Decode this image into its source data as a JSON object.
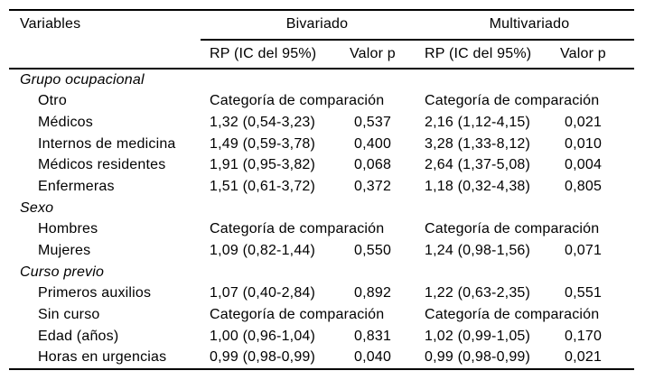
{
  "table": {
    "header": {
      "variables_label": "Variables",
      "bivariate_label": "Bivariado",
      "multivariate_label": "Multivariado",
      "bivariate_rp_label": "RP (IC del 95%)",
      "bivariate_p_label": "Valor p",
      "multivariate_rp_label": "RP (IC del 95%)",
      "multivariate_p_label": "Valor p"
    },
    "comparison_note": "Categoría de comparación",
    "rows": [
      {
        "type": "section",
        "label": "Grupo ocupacional"
      },
      {
        "type": "comparison",
        "label": "Otro",
        "bi": "Categoría de comparación",
        "multi": "Categoría de comparación"
      },
      {
        "type": "data",
        "label": "Médicos",
        "bi_rp": "1,32 (0,54-3,23)",
        "bi_p": "0,537",
        "multi_rp": "2,16 (1,12-4,15)",
        "multi_p": "0,021"
      },
      {
        "type": "data",
        "label": "Internos de medicina",
        "bi_rp": "1,49 (0,59-3,78)",
        "bi_p": "0,400",
        "multi_rp": "3,28 (1,33-8,12)",
        "multi_p": "0,010"
      },
      {
        "type": "data",
        "label": "Médicos residentes",
        "bi_rp": "1,91 (0,95-3,82)",
        "bi_p": "0,068",
        "multi_rp": "2,64 (1,37-5,08)",
        "multi_p": "0,004"
      },
      {
        "type": "data",
        "label": "Enfermeras",
        "bi_rp": "1,51 (0,61-3,72)",
        "bi_p": "0,372",
        "multi_rp": "1,18 (0,32-4,38)",
        "multi_p": "0,805"
      },
      {
        "type": "section",
        "label": "Sexo"
      },
      {
        "type": "comparison",
        "label": "Hombres",
        "bi": "Categoría de comparación",
        "multi": "Categoría de comparación"
      },
      {
        "type": "data",
        "label": "Mujeres",
        "bi_rp": "1,09 (0,82-1,44)",
        "bi_p": "0,550",
        "multi_rp": "1,24 (0,98-1,56)",
        "multi_p": "0,071"
      },
      {
        "type": "section",
        "label": "Curso previo"
      },
      {
        "type": "data",
        "label": "Primeros auxilios",
        "bi_rp": "1,07 (0,40-2,84)",
        "bi_p": "0,892",
        "multi_rp": "1,22 (0,63-2,35)",
        "multi_p": "0,551"
      },
      {
        "type": "comparison",
        "label": "Sin curso",
        "bi": "Categoría de comparación",
        "multi": "Categoría de comparación"
      },
      {
        "type": "data",
        "label": "Edad (años)",
        "bi_rp": "1,00 (0,96-1,04)",
        "bi_p": "0,831",
        "multi_rp": "1,02 (0,99-1,05)",
        "multi_p": "0,170"
      },
      {
        "type": "data",
        "label": "Horas en urgencias",
        "bi_rp": "0,99 (0,98-0,99)",
        "bi_p": "0,040",
        "multi_rp": "0,99 (0,98-0,99)",
        "multi_p": "0,021"
      }
    ],
    "colors": {
      "text": "#000000",
      "background": "#ffffff",
      "rule": "#000000"
    }
  }
}
